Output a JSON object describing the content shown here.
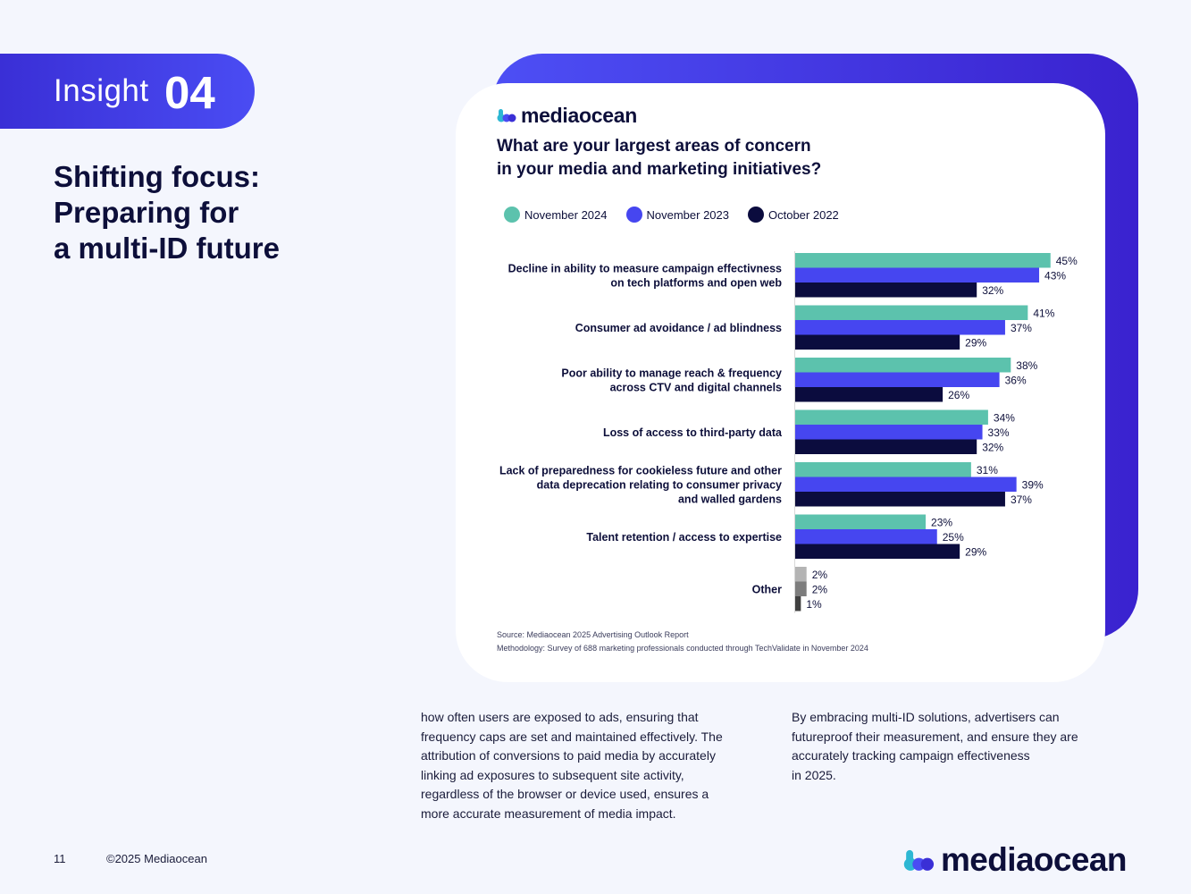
{
  "insight": {
    "word": "Insight",
    "number": "04"
  },
  "headline": [
    "Shifting focus:",
    "Preparing for",
    "a multi-ID future"
  ],
  "brand": {
    "name": "mediaocean"
  },
  "chart_data": {
    "type": "bar",
    "orientation": "horizontal",
    "title_lines": [
      "What are your largest areas of concern",
      "in your media and marketing initiatives?"
    ],
    "categories": [
      [
        "Decline in ability to measure campaign effectivness",
        "on tech platforms and open web"
      ],
      [
        "Consumer ad avoidance / ad blindness"
      ],
      [
        "Poor ability to manage reach & frequency",
        "across CTV and digital channels"
      ],
      [
        "Loss of access to third-party data"
      ],
      [
        "Lack of preparedness for cookieless future and other",
        "data deprecation relating to consumer privacy",
        "and walled gardens"
      ],
      [
        "Talent retention / access to expertise"
      ],
      [
        "Other"
      ]
    ],
    "series": [
      {
        "name": "November 2024",
        "color": "#5cc2ad",
        "values": [
          45,
          41,
          38,
          34,
          31,
          23,
          2
        ]
      },
      {
        "name": "November 2023",
        "color": "#4646f0",
        "values": [
          43,
          37,
          36,
          33,
          39,
          25,
          2
        ]
      },
      {
        "name": "October 2022",
        "color": "#0b0c3e",
        "values": [
          32,
          29,
          26,
          32,
          37,
          29,
          1
        ]
      }
    ],
    "other_colors": [
      "#b4b4b4",
      "#7d7d7d",
      "#404040"
    ],
    "value_suffix": "%",
    "legend_position": "top",
    "grid": false
  },
  "source_lines": [
    "Source: Mediaocean 2025 Advertising Outlook Report",
    "Methodology: Survey of 688 marketing professionals conducted through TechValidate in November 2024"
  ],
  "body": {
    "left": [
      "how often users are exposed to ads, ensuring that",
      "frequency caps are set and maintained effectively. The",
      "attribution of conversions to paid media by accurately",
      "linking ad exposures to subsequent site activity,",
      "regardless of the browser or device used, ensures a",
      "more accurate measurement of media impact."
    ],
    "right": [
      "By embracing multi-ID solutions, advertisers can",
      "futureproof their measurement, and ensure they are",
      "accurately tracking campaign effectiveness",
      "in 2025."
    ]
  },
  "footer": {
    "page_number": "11",
    "copyright": "©2025 Mediaocean"
  }
}
